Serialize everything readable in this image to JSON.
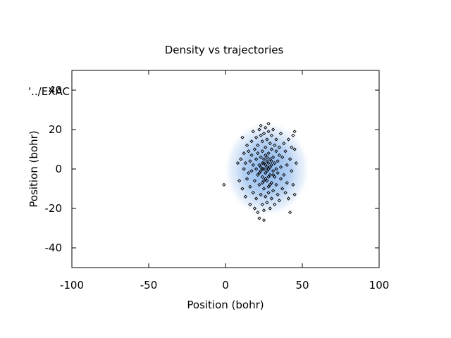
{
  "chart_data": {
    "type": "scatter",
    "title": "Density vs trajectories",
    "xlabel": "Position (bohr)",
    "ylabel": "Position (bohr)",
    "xlim": [
      -100,
      100
    ],
    "ylim": [
      -50,
      50
    ],
    "xticks": [
      -100,
      -50,
      0,
      50,
      100
    ],
    "xtick_labels": [
      "-100",
      "-50",
      "0",
      "50",
      "100"
    ],
    "yticks": [
      -40,
      -20,
      0,
      20,
      40
    ],
    "ytick_labels": [
      "-40",
      "-20",
      "0",
      "20",
      "40"
    ],
    "grid": false,
    "legend_text": "'../EXAC",
    "legend_position": "top-left",
    "colors": {
      "density": "#a8c8f0",
      "points": "#000000",
      "axes": "#000000"
    },
    "density": {
      "shape": "gaussian-ellipse",
      "center": [
        27,
        0
      ],
      "spread": [
        11,
        14
      ]
    },
    "series": [
      {
        "marker": "diamond",
        "points": [
          [
            -1,
            -8
          ],
          [
            8,
            3
          ],
          [
            9,
            -6
          ],
          [
            10,
            5
          ],
          [
            11,
            -10
          ],
          [
            11,
            16
          ],
          [
            12,
            0
          ],
          [
            12,
            8
          ],
          [
            13,
            -14
          ],
          [
            13,
            3
          ],
          [
            14,
            -5
          ],
          [
            14,
            12
          ],
          [
            15,
            -2
          ],
          [
            15,
            9
          ],
          [
            16,
            -18
          ],
          [
            16,
            4
          ],
          [
            16,
            -9
          ],
          [
            17,
            14
          ],
          [
            17,
            -1
          ],
          [
            17,
            7
          ],
          [
            18,
            -12
          ],
          [
            18,
            2
          ],
          [
            18,
            19
          ],
          [
            19,
            -6
          ],
          [
            19,
            10
          ],
          [
            19,
            -20
          ],
          [
            20,
            0
          ],
          [
            20,
            5
          ],
          [
            20,
            -15
          ],
          [
            20,
            16
          ],
          [
            21,
            -3
          ],
          [
            21,
            8
          ],
          [
            21,
            -22
          ],
          [
            21,
            12
          ],
          [
            22,
            -8
          ],
          [
            22,
            2
          ],
          [
            22,
            20
          ],
          [
            22,
            -25
          ],
          [
            23,
            -1
          ],
          [
            23,
            6
          ],
          [
            23,
            -13
          ],
          [
            23,
            17
          ],
          [
            23,
            22
          ],
          [
            24,
            -4
          ],
          [
            24,
            9
          ],
          [
            24,
            -18
          ],
          [
            24,
            3
          ],
          [
            24,
            14
          ],
          [
            25,
            -10
          ],
          [
            25,
            0
          ],
          [
            25,
            5
          ],
          [
            25,
            -21
          ],
          [
            25,
            18
          ],
          [
            25,
            -26
          ],
          [
            26,
            -2
          ],
          [
            26,
            7
          ],
          [
            26,
            -14
          ],
          [
            26,
            11
          ],
          [
            26,
            21
          ],
          [
            27,
            -6
          ],
          [
            27,
            1
          ],
          [
            27,
            4
          ],
          [
            27,
            -17
          ],
          [
            27,
            15
          ],
          [
            28,
            -9
          ],
          [
            28,
            0
          ],
          [
            28,
            8
          ],
          [
            28,
            -12
          ],
          [
            28,
            19
          ],
          [
            28,
            23
          ],
          [
            29,
            -3
          ],
          [
            29,
            5
          ],
          [
            29,
            -20
          ],
          [
            29,
            13
          ],
          [
            30,
            -7
          ],
          [
            30,
            2
          ],
          [
            30,
            10
          ],
          [
            30,
            -15
          ],
          [
            30,
            17
          ],
          [
            31,
            -1
          ],
          [
            31,
            6
          ],
          [
            31,
            -11
          ],
          [
            31,
            20
          ],
          [
            32,
            -4
          ],
          [
            32,
            3
          ],
          [
            32,
            -18
          ],
          [
            32,
            12
          ],
          [
            33,
            -8
          ],
          [
            33,
            0
          ],
          [
            33,
            9
          ],
          [
            33,
            15
          ],
          [
            34,
            -13
          ],
          [
            34,
            4
          ],
          [
            34,
            -2
          ],
          [
            35,
            7
          ],
          [
            35,
            -16
          ],
          [
            35,
            11
          ],
          [
            36,
            -5
          ],
          [
            36,
            1
          ],
          [
            36,
            18
          ],
          [
            37,
            -10
          ],
          [
            37,
            6
          ],
          [
            38,
            13
          ],
          [
            38,
            -3
          ],
          [
            39,
            -12
          ],
          [
            39,
            9
          ],
          [
            40,
            2
          ],
          [
            40,
            -7
          ],
          [
            41,
            15
          ],
          [
            41,
            -15
          ],
          [
            42,
            5
          ],
          [
            42,
            -22
          ],
          [
            43,
            11
          ],
          [
            43,
            -1
          ],
          [
            44,
            -8
          ],
          [
            44,
            17
          ],
          [
            45,
            10
          ],
          [
            45,
            -13
          ],
          [
            45,
            19
          ],
          [
            46,
            3
          ],
          [
            24,
            0
          ],
          [
            26,
            2
          ],
          [
            27,
            -1
          ],
          [
            29,
            1
          ],
          [
            25,
            3
          ],
          [
            28,
            -4
          ],
          [
            23,
            1
          ],
          [
            26,
            -5
          ],
          [
            30,
            4
          ],
          [
            27,
            6
          ],
          [
            24,
            -7
          ],
          [
            29,
            -8
          ],
          [
            31,
            -3
          ],
          [
            22,
            -2
          ],
          [
            25,
            -6
          ],
          [
            28,
            3
          ]
        ]
      }
    ]
  }
}
